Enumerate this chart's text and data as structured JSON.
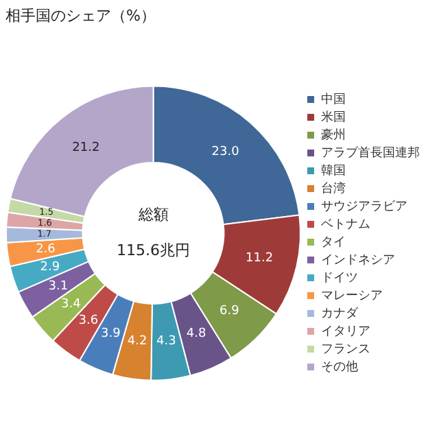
{
  "chart_data": {
    "type": "donut",
    "title": "相手国のシェア（%）",
    "categories": [
      "中国",
      "米国",
      "豪州",
      "アラブ首長国連邦",
      "韓国",
      "台湾",
      "サウジアラビア",
      "ベトナム",
      "タイ",
      "インドネシア",
      "ドイツ",
      "マレーシア",
      "カナダ",
      "イタリア",
      "フランス",
      "その他"
    ],
    "values": [
      23.0,
      11.2,
      6.9,
      4.8,
      4.3,
      4.2,
      3.9,
      3.6,
      3.4,
      3.1,
      2.9,
      2.6,
      1.7,
      1.6,
      1.5,
      21.2
    ],
    "colors": [
      "#3f6797",
      "#9e3b39",
      "#7f9a48",
      "#69548a",
      "#3d9ab2",
      "#d6822f",
      "#4a7ebb",
      "#be4b48",
      "#98b954",
      "#7d60a0",
      "#46aac5",
      "#f79646",
      "#a5b9dc",
      "#dca6a6",
      "#c5d9a8",
      "#b3a6c8"
    ],
    "value_labels": [
      "23.0",
      "11.2",
      "6.9",
      "4.8",
      "4.3",
      "4.2",
      "3.9",
      "3.6",
      "3.4",
      "3.1",
      "2.9",
      "2.6",
      "1.7",
      "1.6",
      "1.5",
      "21.2"
    ],
    "legend": "right",
    "annotations": [
      "総額",
      "115.6兆円"
    ]
  }
}
